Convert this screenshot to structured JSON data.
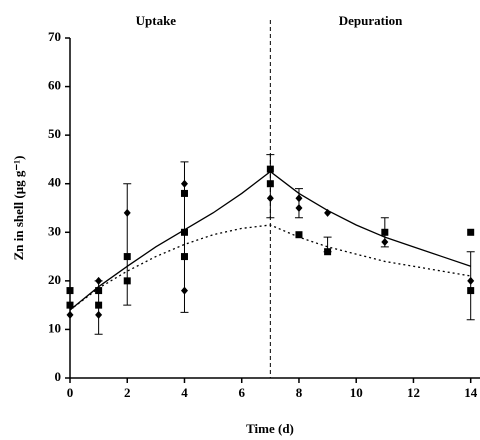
{
  "chart_data": {
    "type": "scatter",
    "annotations": [
      {
        "text": "Uptake",
        "x": 3
      },
      {
        "text": "Depuration",
        "x": 10.5
      }
    ],
    "vline": 7,
    "x_label": "Time (d)",
    "y_label": "Zn in shell (μg g⁻¹)",
    "xlim": [
      0,
      14.5
    ],
    "xticks": [
      0,
      2,
      4,
      6,
      8,
      10,
      12,
      14
    ],
    "ylim": [
      0,
      70
    ],
    "yticks": [
      0,
      10,
      20,
      30,
      40,
      50,
      60,
      70
    ],
    "series": [
      {
        "marker": "diamond",
        "color": "#000000",
        "x": [
          0,
          0,
          1,
          1,
          2,
          4,
          4,
          7,
          8,
          8,
          9,
          11,
          14
        ],
        "values": [
          13,
          15,
          13,
          20,
          34,
          40,
          18,
          37,
          37,
          35,
          34,
          28,
          20
        ]
      },
      {
        "marker": "square",
        "color": "#000000",
        "x": [
          0,
          0,
          1,
          1,
          2,
          2,
          4,
          4,
          4,
          7,
          7,
          8,
          9,
          11,
          14,
          14
        ],
        "values": [
          15,
          18,
          15,
          18,
          25,
          20,
          38,
          30,
          25,
          43,
          40,
          29.5,
          26,
          30,
          30,
          18
        ]
      }
    ],
    "error_bars": {
      "x": [
        1,
        2,
        4,
        7,
        8,
        9,
        11,
        14
      ],
      "values": [
        14.5,
        27.5,
        29,
        39.5,
        36,
        27.5,
        30,
        19
      ],
      "errors": [
        5.5,
        12.5,
        15.5,
        6.5,
        3,
        1.5,
        3,
        7
      ]
    },
    "lines": [
      {
        "style": "solid",
        "color": "#000000",
        "x": [
          0,
          1,
          2,
          3,
          4,
          5,
          6,
          7,
          8,
          9,
          10,
          11,
          12,
          13,
          14
        ],
        "values": [
          14,
          18.8,
          23,
          27,
          30.5,
          34,
          38,
          42.5,
          38,
          34.5,
          31.5,
          29,
          27,
          25,
          23
        ]
      },
      {
        "style": "dotted",
        "color": "#000000",
        "x": [
          0,
          1,
          2,
          3,
          4,
          5,
          6,
          7,
          8,
          9,
          10,
          11,
          12,
          13,
          14
        ],
        "values": [
          14,
          18.5,
          22,
          25,
          27.5,
          29.5,
          30.8,
          31.5,
          29,
          27,
          25.5,
          24,
          23,
          22,
          21
        ]
      }
    ]
  }
}
